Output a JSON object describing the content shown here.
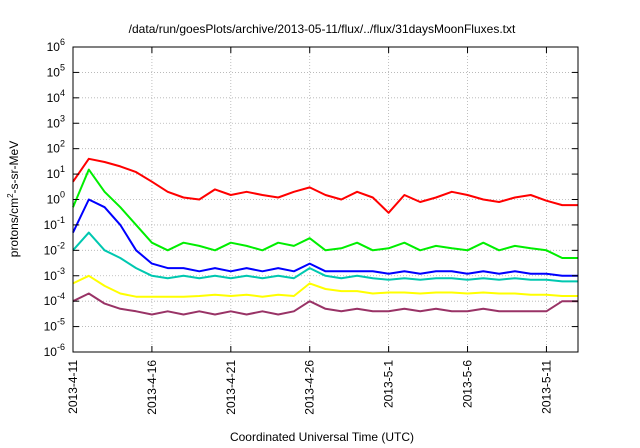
{
  "chart_data": {
    "type": "line",
    "title": "/data/run/goesPlots/archive/2013-05-11/flux/../flux/31daysMoonFluxes.txt",
    "xlabel": "Coordinated Universal Time (UTC)",
    "ylabel": "protons/cm2-s-sr-MeV",
    "ylabel_parts": {
      "pre": "protons/cm",
      "sup": "2",
      "post": "-s-sr-MeV"
    },
    "yscale": "log",
    "ylim": [
      1e-06,
      1000000.0
    ],
    "y_ticks": [
      {
        "base": "10",
        "exp": "6",
        "value": 1000000.0
      },
      {
        "base": "10",
        "exp": "5",
        "value": 100000.0
      },
      {
        "base": "10",
        "exp": "4",
        "value": 10000.0
      },
      {
        "base": "10",
        "exp": "3",
        "value": 1000.0
      },
      {
        "base": "10",
        "exp": "2",
        "value": 100.0
      },
      {
        "base": "10",
        "exp": "1",
        "value": 10.0
      },
      {
        "base": "10",
        "exp": "0",
        "value": 1
      },
      {
        "base": "10",
        "exp": "-1",
        "value": 0.1
      },
      {
        "base": "10",
        "exp": "-2",
        "value": 0.01
      },
      {
        "base": "10",
        "exp": "-3",
        "value": 0.001
      },
      {
        "base": "10",
        "exp": "-4",
        "value": 0.0001
      },
      {
        "base": "10",
        "exp": "-5",
        "value": 1e-05
      },
      {
        "base": "10",
        "exp": "-6",
        "value": 1e-06
      }
    ],
    "xlim": [
      "2013-04-11",
      "2013-05-13"
    ],
    "x_ticks": [
      "2013-4-11",
      "2013-4-16",
      "2013-4-21",
      "2013-4-26",
      "2013-5-1",
      "2013-5-6",
      "2013-5-11"
    ],
    "x_tick_values": [
      "2013-04-11",
      "2013-04-16",
      "2013-04-21",
      "2013-04-26",
      "2013-05-01",
      "2013-05-06",
      "2013-05-11"
    ],
    "grid": true,
    "legend": "none",
    "series": [
      {
        "color": "#ff0000",
        "x": [
          "2013-04-11",
          "2013-04-12",
          "2013-04-13",
          "2013-04-14",
          "2013-04-15",
          "2013-04-16",
          "2013-04-17",
          "2013-04-18",
          "2013-04-19",
          "2013-04-20",
          "2013-04-21",
          "2013-04-22",
          "2013-04-23",
          "2013-04-24",
          "2013-04-25",
          "2013-04-26",
          "2013-04-27",
          "2013-04-28",
          "2013-04-29",
          "2013-04-30",
          "2013-05-01",
          "2013-05-02",
          "2013-05-03",
          "2013-05-04",
          "2013-05-05",
          "2013-05-06",
          "2013-05-07",
          "2013-05-08",
          "2013-05-09",
          "2013-05-10",
          "2013-05-11",
          "2013-05-12",
          "2013-05-13"
        ],
        "values": [
          5,
          40,
          30,
          20,
          12,
          5,
          2,
          1.2,
          1,
          2.5,
          1.5,
          2,
          1.5,
          1.2,
          2,
          3,
          1.5,
          1,
          2,
          1.2,
          0.3,
          1.5,
          0.8,
          1.2,
          2,
          1.5,
          1,
          0.8,
          1.2,
          1.5,
          0.9,
          0.6,
          0.6
        ]
      },
      {
        "color": "#00ee00",
        "x": [
          "2013-04-11",
          "2013-04-12",
          "2013-04-13",
          "2013-04-14",
          "2013-04-15",
          "2013-04-16",
          "2013-04-17",
          "2013-04-18",
          "2013-04-19",
          "2013-04-20",
          "2013-04-21",
          "2013-04-22",
          "2013-04-23",
          "2013-04-24",
          "2013-04-25",
          "2013-04-26",
          "2013-04-27",
          "2013-04-28",
          "2013-04-29",
          "2013-04-30",
          "2013-05-01",
          "2013-05-02",
          "2013-05-03",
          "2013-05-04",
          "2013-05-05",
          "2013-05-06",
          "2013-05-07",
          "2013-05-08",
          "2013-05-09",
          "2013-05-10",
          "2013-05-11",
          "2013-05-12",
          "2013-05-13"
        ],
        "values": [
          0.5,
          15,
          2,
          0.5,
          0.1,
          0.02,
          0.01,
          0.02,
          0.015,
          0.01,
          0.02,
          0.015,
          0.01,
          0.02,
          0.015,
          0.03,
          0.01,
          0.012,
          0.02,
          0.01,
          0.012,
          0.02,
          0.01,
          0.015,
          0.012,
          0.01,
          0.02,
          0.01,
          0.015,
          0.012,
          0.01,
          0.005,
          0.005
        ]
      },
      {
        "color": "#0000ff",
        "x": [
          "2013-04-11",
          "2013-04-12",
          "2013-04-13",
          "2013-04-14",
          "2013-04-15",
          "2013-04-16",
          "2013-04-17",
          "2013-04-18",
          "2013-04-19",
          "2013-04-20",
          "2013-04-21",
          "2013-04-22",
          "2013-04-23",
          "2013-04-24",
          "2013-04-25",
          "2013-04-26",
          "2013-04-27",
          "2013-04-28",
          "2013-04-29",
          "2013-04-30",
          "2013-05-01",
          "2013-05-02",
          "2013-05-03",
          "2013-05-04",
          "2013-05-05",
          "2013-05-06",
          "2013-05-07",
          "2013-05-08",
          "2013-05-09",
          "2013-05-10",
          "2013-05-11",
          "2013-05-12",
          "2013-05-13"
        ],
        "values": [
          0.05,
          1,
          0.5,
          0.1,
          0.01,
          0.003,
          0.002,
          0.002,
          0.0015,
          0.002,
          0.0015,
          0.002,
          0.0015,
          0.002,
          0.0015,
          0.003,
          0.0015,
          0.0015,
          0.0015,
          0.0015,
          0.0012,
          0.0015,
          0.0012,
          0.0015,
          0.0015,
          0.0012,
          0.0015,
          0.0012,
          0.0015,
          0.0012,
          0.0012,
          0.001,
          0.001
        ]
      },
      {
        "color": "#00c8b0",
        "x": [
          "2013-04-11",
          "2013-04-12",
          "2013-04-13",
          "2013-04-14",
          "2013-04-15",
          "2013-04-16",
          "2013-04-17",
          "2013-04-18",
          "2013-04-19",
          "2013-04-20",
          "2013-04-21",
          "2013-04-22",
          "2013-04-23",
          "2013-04-24",
          "2013-04-25",
          "2013-04-26",
          "2013-04-27",
          "2013-04-28",
          "2013-04-29",
          "2013-04-30",
          "2013-05-01",
          "2013-05-02",
          "2013-05-03",
          "2013-05-04",
          "2013-05-05",
          "2013-05-06",
          "2013-05-07",
          "2013-05-08",
          "2013-05-09",
          "2013-05-10",
          "2013-05-11",
          "2013-05-12",
          "2013-05-13"
        ],
        "values": [
          0.01,
          0.05,
          0.01,
          0.005,
          0.002,
          0.001,
          0.0008,
          0.001,
          0.0008,
          0.001,
          0.0008,
          0.001,
          0.0008,
          0.001,
          0.0008,
          0.002,
          0.001,
          0.0008,
          0.001,
          0.0008,
          0.0007,
          0.0008,
          0.0007,
          0.0008,
          0.0008,
          0.0007,
          0.0008,
          0.0007,
          0.0008,
          0.0007,
          0.0007,
          0.0006,
          0.0006
        ]
      },
      {
        "color": "#ffff00",
        "x": [
          "2013-04-11",
          "2013-04-12",
          "2013-04-13",
          "2013-04-14",
          "2013-04-15",
          "2013-04-16",
          "2013-04-17",
          "2013-04-18",
          "2013-04-19",
          "2013-04-20",
          "2013-04-21",
          "2013-04-22",
          "2013-04-23",
          "2013-04-24",
          "2013-04-25",
          "2013-04-26",
          "2013-04-27",
          "2013-04-28",
          "2013-04-29",
          "2013-04-30",
          "2013-05-01",
          "2013-05-02",
          "2013-05-03",
          "2013-05-04",
          "2013-05-05",
          "2013-05-06",
          "2013-05-07",
          "2013-05-08",
          "2013-05-09",
          "2013-05-10",
          "2013-05-11",
          "2013-05-12",
          "2013-05-13"
        ],
        "values": [
          0.0005,
          0.001,
          0.0004,
          0.0002,
          0.00015,
          0.00015,
          0.00015,
          0.00015,
          0.00016,
          0.00018,
          0.00016,
          0.00018,
          0.00015,
          0.00018,
          0.00016,
          0.0005,
          0.0003,
          0.00025,
          0.00025,
          0.0002,
          0.00022,
          0.00022,
          0.0002,
          0.00022,
          0.00022,
          0.0002,
          0.00022,
          0.0002,
          0.0002,
          0.00018,
          0.00018,
          0.00016,
          0.00016
        ]
      },
      {
        "color": "#993366",
        "x": [
          "2013-04-11",
          "2013-04-12",
          "2013-04-13",
          "2013-04-14",
          "2013-04-15",
          "2013-04-16",
          "2013-04-17",
          "2013-04-18",
          "2013-04-19",
          "2013-04-20",
          "2013-04-21",
          "2013-04-22",
          "2013-04-23",
          "2013-04-24",
          "2013-04-25",
          "2013-04-26",
          "2013-04-27",
          "2013-04-28",
          "2013-04-29",
          "2013-04-30",
          "2013-05-01",
          "2013-05-02",
          "2013-05-03",
          "2013-05-04",
          "2013-05-05",
          "2013-05-06",
          "2013-05-07",
          "2013-05-08",
          "2013-05-09",
          "2013-05-10",
          "2013-05-11",
          "2013-05-12",
          "2013-05-13"
        ],
        "values": [
          0.0001,
          0.0002,
          8e-05,
          5e-05,
          4e-05,
          3e-05,
          4e-05,
          3e-05,
          4e-05,
          3e-05,
          4e-05,
          3e-05,
          4e-05,
          3e-05,
          4e-05,
          0.0001,
          5e-05,
          4e-05,
          5e-05,
          4e-05,
          4e-05,
          5e-05,
          4e-05,
          5e-05,
          4e-05,
          4e-05,
          5e-05,
          4e-05,
          4e-05,
          4e-05,
          4e-05,
          0.0001,
          0.0001
        ]
      }
    ]
  }
}
